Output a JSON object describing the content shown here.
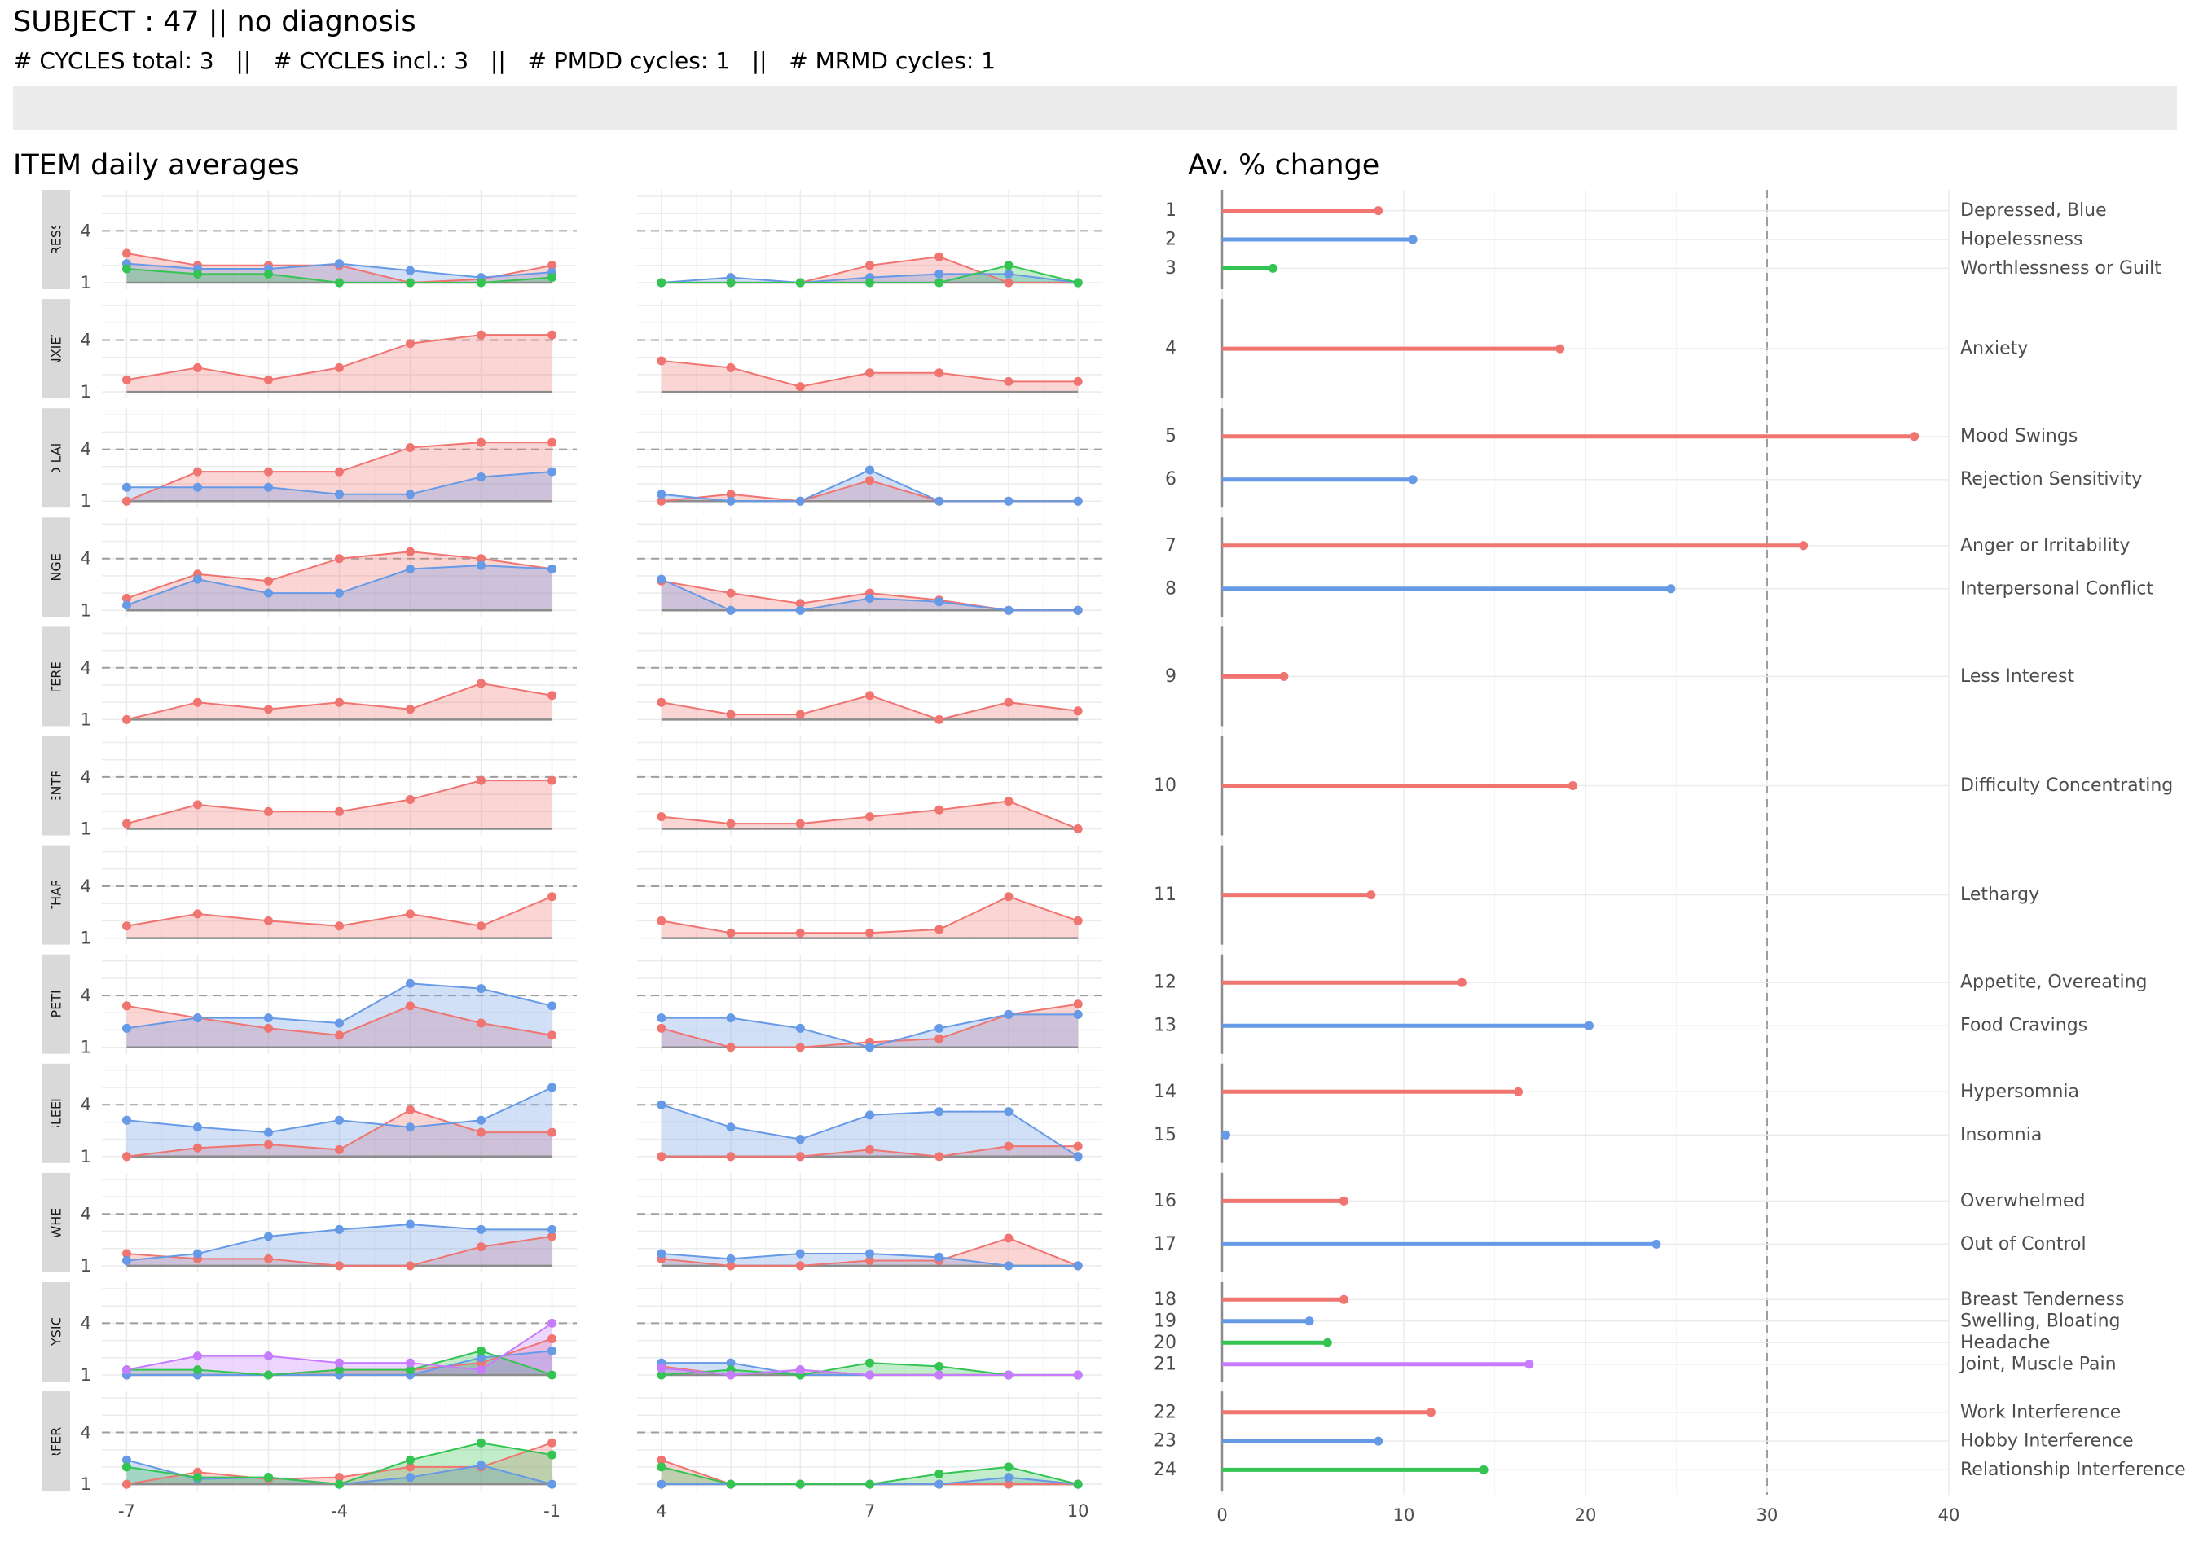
{
  "header": {
    "title": "SUBJECT : 47   ||   no diagnosis",
    "subtitle": "# CYCLES total: 3   ||   # CYCLES incl.: 3   ||   # PMDD cycles: 1   ||   # MRMD cycles: 1",
    "left_panel_title": "ITEM daily averages",
    "right_panel_title": "Av. % change"
  },
  "colors": {
    "red": "#F07470",
    "blue": "#6699E6",
    "green": "#33C451",
    "purple": "#C77CFF",
    "strip_bg": "#D9D9D9",
    "grid": "#EBEBEB"
  },
  "chart_data": [
    {
      "type": "area",
      "title": "ITEM daily averages",
      "y_ticks": [
        1,
        4
      ],
      "ylim": [
        1,
        6
      ],
      "reference_line": 4,
      "x_left": [
        -7,
        -6,
        -5,
        -4,
        -3,
        -2,
        -1
      ],
      "x_left_ticks": [
        -7,
        -4,
        -1
      ],
      "x_right": [
        4,
        5,
        6,
        7,
        8,
        9,
        10
      ],
      "x_right_ticks": [
        4,
        7,
        10
      ],
      "grid": true,
      "facets": [
        {
          "strip": "DEPRESSION",
          "series": [
            {
              "color": "red",
              "left": [
                2.7,
                2.0,
                2.0,
                2.0,
                1.0,
                1.2,
                2.0
              ],
              "right": [
                1.0,
                1.0,
                1.0,
                2.0,
                2.5,
                1.0,
                1.0
              ]
            },
            {
              "color": "blue",
              "left": [
                2.1,
                1.8,
                1.8,
                2.1,
                1.7,
                1.3,
                1.6
              ],
              "right": [
                1.0,
                1.3,
                1.0,
                1.3,
                1.5,
                1.5,
                1.0
              ]
            },
            {
              "color": "green",
              "left": [
                1.8,
                1.5,
                1.5,
                1.0,
                1.0,
                1.0,
                1.3
              ],
              "right": [
                1.0,
                1.0,
                1.0,
                1.0,
                1.0,
                2.0,
                1.0
              ]
            }
          ]
        },
        {
          "strip": "ANXIETY",
          "series": [
            {
              "color": "red",
              "left": [
                1.7,
                2.4,
                1.7,
                2.4,
                3.8,
                4.3,
                4.3
              ],
              "right": [
                2.8,
                2.4,
                1.3,
                2.1,
                2.1,
                1.6,
                1.6
              ]
            }
          ]
        },
        {
          "strip": "MOOD LABILITY",
          "series": [
            {
              "color": "red",
              "left": [
                1.0,
                2.7,
                2.7,
                2.7,
                4.1,
                4.4,
                4.4
              ],
              "right": [
                1.0,
                1.4,
                1.0,
                2.2,
                1.0,
                1.0,
                1.0
              ]
            },
            {
              "color": "blue",
              "left": [
                1.8,
                1.8,
                1.8,
                1.4,
                1.4,
                2.4,
                2.7
              ],
              "right": [
                1.4,
                1.0,
                1.0,
                2.8,
                1.0,
                1.0,
                1.0
              ]
            }
          ]
        },
        {
          "strip": "ANGER",
          "series": [
            {
              "color": "red",
              "left": [
                1.7,
                3.1,
                2.7,
                4.0,
                4.4,
                4.0,
                3.4
              ],
              "right": [
                2.7,
                2.0,
                1.4,
                2.0,
                1.6,
                1.0,
                1.0
              ]
            },
            {
              "color": "blue",
              "left": [
                1.3,
                2.8,
                2.0,
                2.0,
                3.4,
                3.6,
                3.4
              ],
              "right": [
                2.8,
                1.0,
                1.0,
                1.7,
                1.5,
                1.0,
                1.0
              ]
            }
          ]
        },
        {
          "strip": "INTEREST",
          "series": [
            {
              "color": "red",
              "left": [
                1.0,
                2.0,
                1.6,
                2.0,
                1.6,
                3.1,
                2.4
              ],
              "right": [
                2.0,
                1.3,
                1.3,
                2.4,
                1.0,
                2.0,
                1.5
              ]
            }
          ]
        },
        {
          "strip": "CONCENTRATION",
          "series": [
            {
              "color": "red",
              "left": [
                1.3,
                2.4,
                2.0,
                2.0,
                2.7,
                3.8,
                3.8
              ],
              "right": [
                1.7,
                1.3,
                1.3,
                1.7,
                2.1,
                2.6,
                1.0
              ]
            }
          ]
        },
        {
          "strip": "LETHARGY",
          "series": [
            {
              "color": "red",
              "left": [
                1.7,
                2.4,
                2.0,
                1.7,
                2.4,
                1.7,
                3.4
              ],
              "right": [
                2.0,
                1.3,
                1.3,
                1.3,
                1.5,
                3.4,
                2.0
              ]
            }
          ]
        },
        {
          "strip": "APPETITE",
          "series": [
            {
              "color": "red",
              "left": [
                3.4,
                2.7,
                2.1,
                1.7,
                3.4,
                2.4,
                1.7
              ],
              "right": [
                2.1,
                1.0,
                1.0,
                1.3,
                1.5,
                2.9,
                3.5
              ]
            },
            {
              "color": "blue",
              "left": [
                2.1,
                2.7,
                2.7,
                2.4,
                4.7,
                4.4,
                3.4
              ],
              "right": [
                2.7,
                2.7,
                2.1,
                1.0,
                2.1,
                2.9,
                2.9
              ]
            }
          ]
        },
        {
          "strip": "SLEEP",
          "series": [
            {
              "color": "red",
              "left": [
                1.0,
                1.5,
                1.7,
                1.4,
                3.7,
                2.4,
                2.4
              ],
              "right": [
                1.0,
                1.0,
                1.0,
                1.4,
                1.0,
                1.6,
                1.6
              ]
            },
            {
              "color": "blue",
              "left": [
                3.1,
                2.7,
                2.4,
                3.1,
                2.7,
                3.1,
                5.0
              ],
              "right": [
                4.0,
                2.7,
                2.0,
                3.4,
                3.6,
                3.6,
                1.0
              ]
            }
          ]
        },
        {
          "strip": "OVERWHELMED",
          "series": [
            {
              "color": "red",
              "left": [
                1.7,
                1.4,
                1.4,
                1.0,
                1.0,
                2.1,
                2.7
              ],
              "right": [
                1.4,
                1.0,
                1.0,
                1.3,
                1.3,
                2.6,
                1.0
              ]
            },
            {
              "color": "blue",
              "left": [
                1.3,
                1.7,
                2.7,
                3.1,
                3.4,
                3.1,
                3.1
              ],
              "right": [
                1.7,
                1.4,
                1.7,
                1.7,
                1.5,
                1.0,
                1.0
              ]
            }
          ]
        },
        {
          "strip": "PHYSICAL",
          "series": [
            {
              "color": "red",
              "left": [
                1.0,
                1.0,
                1.0,
                1.3,
                1.3,
                1.7,
                3.1
              ],
              "right": [
                1.5,
                1.0,
                1.3,
                1.0,
                1.0,
                1.0,
                1.0
              ]
            },
            {
              "color": "blue",
              "left": [
                1.0,
                1.0,
                1.0,
                1.0,
                1.0,
                2.0,
                2.4
              ],
              "right": [
                1.7,
                1.7,
                1.0,
                1.0,
                1.0,
                1.0,
                1.0
              ]
            },
            {
              "color": "green",
              "left": [
                1.3,
                1.3,
                1.0,
                1.3,
                1.3,
                2.4,
                1.0
              ],
              "right": [
                1.0,
                1.3,
                1.0,
                1.7,
                1.5,
                1.0,
                1.0
              ]
            },
            {
              "color": "purple",
              "left": [
                1.3,
                2.1,
                2.1,
                1.7,
                1.7,
                1.3,
                4.0
              ],
              "right": [
                1.4,
                1.0,
                1.3,
                1.0,
                1.0,
                1.0,
                1.0
              ]
            }
          ]
        },
        {
          "strip": "INTERFERENCE",
          "series": [
            {
              "color": "red",
              "left": [
                1.0,
                1.7,
                1.3,
                1.4,
                2.0,
                2.0,
                3.4
              ],
              "right": [
                2.4,
                1.0,
                1.0,
                1.0,
                1.0,
                1.0,
                1.0
              ]
            },
            {
              "color": "blue",
              "left": [
                2.4,
                1.3,
                1.4,
                1.0,
                1.4,
                2.1,
                1.0
              ],
              "right": [
                1.0,
                1.0,
                1.0,
                1.0,
                1.0,
                1.4,
                1.0
              ]
            },
            {
              "color": "green",
              "left": [
                2.0,
                1.4,
                1.4,
                1.0,
                2.4,
                3.4,
                2.7
              ],
              "right": [
                2.0,
                1.0,
                1.0,
                1.0,
                1.6,
                2.0,
                1.0
              ]
            }
          ]
        }
      ]
    },
    {
      "type": "bar",
      "orientation": "horizontal",
      "title": "Av. % change",
      "xlim": [
        0,
        40
      ],
      "x_ticks": [
        0,
        10,
        20,
        30,
        40
      ],
      "reference_line": 30,
      "grid": true,
      "groups": [
        {
          "items": [
            {
              "num": "1",
              "label": "Depressed, Blue",
              "value": 8.6,
              "color": "red"
            },
            {
              "num": "2",
              "label": "Hopelessness",
              "value": 10.5,
              "color": "blue"
            },
            {
              "num": "3",
              "label": "Worthlessness or Guilt",
              "value": 2.8,
              "color": "green"
            }
          ]
        },
        {
          "items": [
            {
              "num": "4",
              "label": "Anxiety",
              "value": 18.6,
              "color": "red"
            }
          ]
        },
        {
          "items": [
            {
              "num": "5",
              "label": "Mood Swings",
              "value": 38.1,
              "color": "red"
            },
            {
              "num": "6",
              "label": "Rejection Sensitivity",
              "value": 10.5,
              "color": "blue"
            }
          ]
        },
        {
          "items": [
            {
              "num": "7",
              "label": "Anger or Irritability",
              "value": 32.0,
              "color": "red"
            },
            {
              "num": "8",
              "label": "Interpersonal Conflict",
              "value": 24.7,
              "color": "blue"
            }
          ]
        },
        {
          "items": [
            {
              "num": "9",
              "label": "Less Interest",
              "value": 3.4,
              "color": "red"
            }
          ]
        },
        {
          "items": [
            {
              "num": "10",
              "label": "Difficulty Concentrating",
              "value": 19.3,
              "color": "red"
            }
          ]
        },
        {
          "items": [
            {
              "num": "11",
              "label": "Lethargy",
              "value": 8.2,
              "color": "red"
            }
          ]
        },
        {
          "items": [
            {
              "num": "12",
              "label": "Appetite, Overeating",
              "value": 13.2,
              "color": "red"
            },
            {
              "num": "13",
              "label": "Food Cravings",
              "value": 20.2,
              "color": "blue"
            }
          ]
        },
        {
          "items": [
            {
              "num": "14",
              "label": "Hypersomnia",
              "value": 16.3,
              "color": "red"
            },
            {
              "num": "15",
              "label": "Insomnia",
              "value": 0.2,
              "color": "blue"
            }
          ]
        },
        {
          "items": [
            {
              "num": "16",
              "label": "Overwhelmed",
              "value": 6.7,
              "color": "red"
            },
            {
              "num": "17",
              "label": "Out of Control",
              "value": 23.9,
              "color": "blue"
            }
          ]
        },
        {
          "items": [
            {
              "num": "18",
              "label": "Breast Tenderness",
              "value": 6.7,
              "color": "red"
            },
            {
              "num": "19",
              "label": "Swelling, Bloating",
              "value": 4.8,
              "color": "blue"
            },
            {
              "num": "20",
              "label": "Headache",
              "value": 5.8,
              "color": "green"
            },
            {
              "num": "21",
              "label": "Joint, Muscle Pain",
              "value": 16.9,
              "color": "purple"
            }
          ]
        },
        {
          "items": [
            {
              "num": "22",
              "label": "Work Interference",
              "value": 11.5,
              "color": "red"
            },
            {
              "num": "23",
              "label": "Hobby Interference",
              "value": 8.6,
              "color": "blue"
            },
            {
              "num": "24",
              "label": "Relationship Interference",
              "value": 14.4,
              "color": "green"
            }
          ]
        }
      ]
    }
  ]
}
